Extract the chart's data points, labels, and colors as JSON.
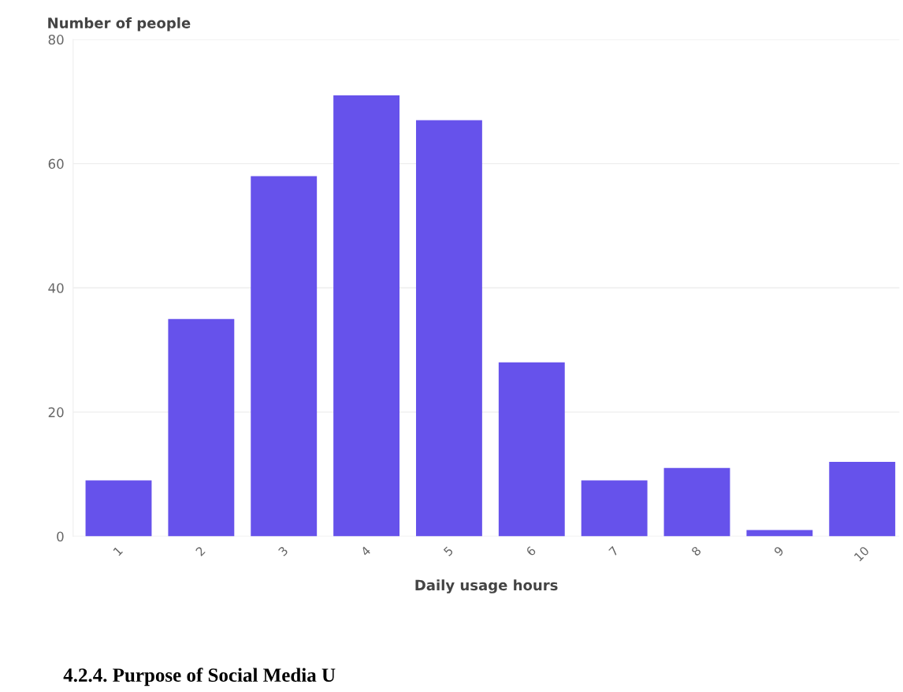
{
  "chart_data": {
    "type": "bar",
    "xlabel": "Daily usage hours",
    "ylabel": "Number of people",
    "categories": [
      "1",
      "2",
      "3",
      "4",
      "5",
      "6",
      "7",
      "8",
      "9",
      "10"
    ],
    "values": [
      9,
      35,
      58,
      71,
      67,
      28,
      9,
      11,
      1,
      12
    ],
    "color": "#6652eb",
    "ylim": [
      0,
      80
    ],
    "yticks": [
      0,
      20,
      40,
      60,
      80
    ],
    "grid": "y",
    "annotations": [
      "4.2.4. Purpose of Social Media U"
    ]
  }
}
